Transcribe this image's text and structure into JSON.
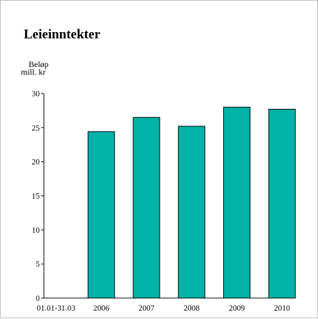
{
  "chart_data": {
    "type": "bar",
    "title": "Leieinntekter",
    "ylabel": [
      "Beløp",
      "mill. kr"
    ],
    "xlabel": "",
    "categories": [
      "01.01-31.03",
      "2006",
      "2007",
      "2008",
      "2009",
      "2010"
    ],
    "values": [
      0,
      24.4,
      26.5,
      25.2,
      28.0,
      27.7
    ],
    "ylim": [
      0,
      30
    ],
    "yticks": [
      0,
      5,
      10,
      15,
      20,
      25,
      30
    ],
    "bar_color": "#00b2a8",
    "grid": false,
    "legend": "none"
  }
}
